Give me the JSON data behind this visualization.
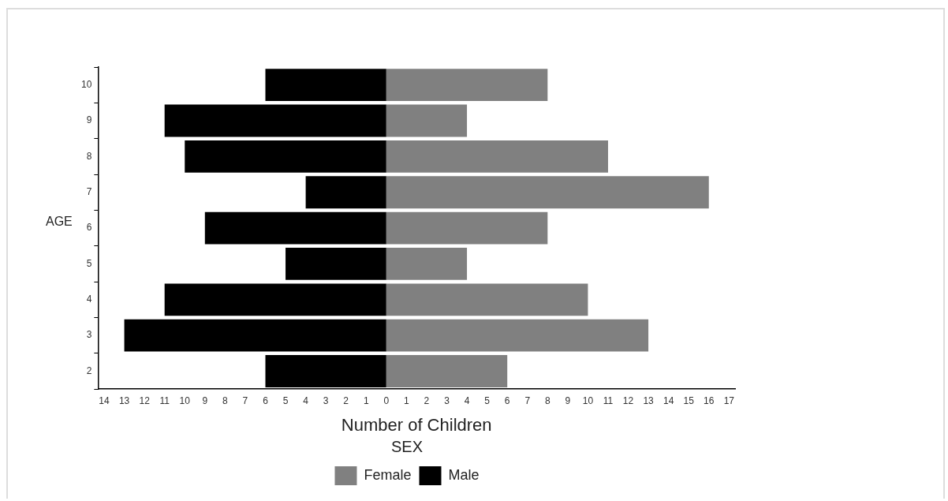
{
  "chart_data": {
    "type": "bar",
    "orientation": "horizontal",
    "stacked": true,
    "xlabel": "Number of Children",
    "ylabel": "AGE",
    "legend_title": "SEX",
    "legend": "bottom",
    "grid": false,
    "categories": [
      "10",
      "9",
      "8",
      "7",
      "6",
      "5",
      "4",
      "3",
      "2"
    ],
    "series": [
      {
        "name": "Female",
        "color": "#808080",
        "values": [
          8,
          4,
          11,
          16,
          8,
          4,
          10,
          13,
          6
        ]
      },
      {
        "name": "Male",
        "color": "#000000",
        "values": [
          -6,
          -11,
          -10,
          -4,
          -9,
          -5,
          -11,
          -13,
          -6
        ]
      }
    ],
    "xlim": [
      -14.3,
      17.3
    ],
    "xticks": [
      {
        "value": -14,
        "label": "14"
      },
      {
        "value": -13,
        "label": "13"
      },
      {
        "value": -12,
        "label": "12"
      },
      {
        "value": -11,
        "label": "11"
      },
      {
        "value": -10,
        "label": "10"
      },
      {
        "value": -9,
        "label": "9"
      },
      {
        "value": -8,
        "label": "8"
      },
      {
        "value": -7,
        "label": "7"
      },
      {
        "value": -6,
        "label": "6"
      },
      {
        "value": -5,
        "label": "5"
      },
      {
        "value": -4,
        "label": "4"
      },
      {
        "value": -3,
        "label": "3"
      },
      {
        "value": -2,
        "label": "2"
      },
      {
        "value": -1,
        "label": "1"
      },
      0,
      1,
      2,
      3,
      4,
      5,
      6,
      7,
      8,
      9,
      10,
      11,
      12,
      13,
      14,
      15,
      16,
      17
    ]
  }
}
